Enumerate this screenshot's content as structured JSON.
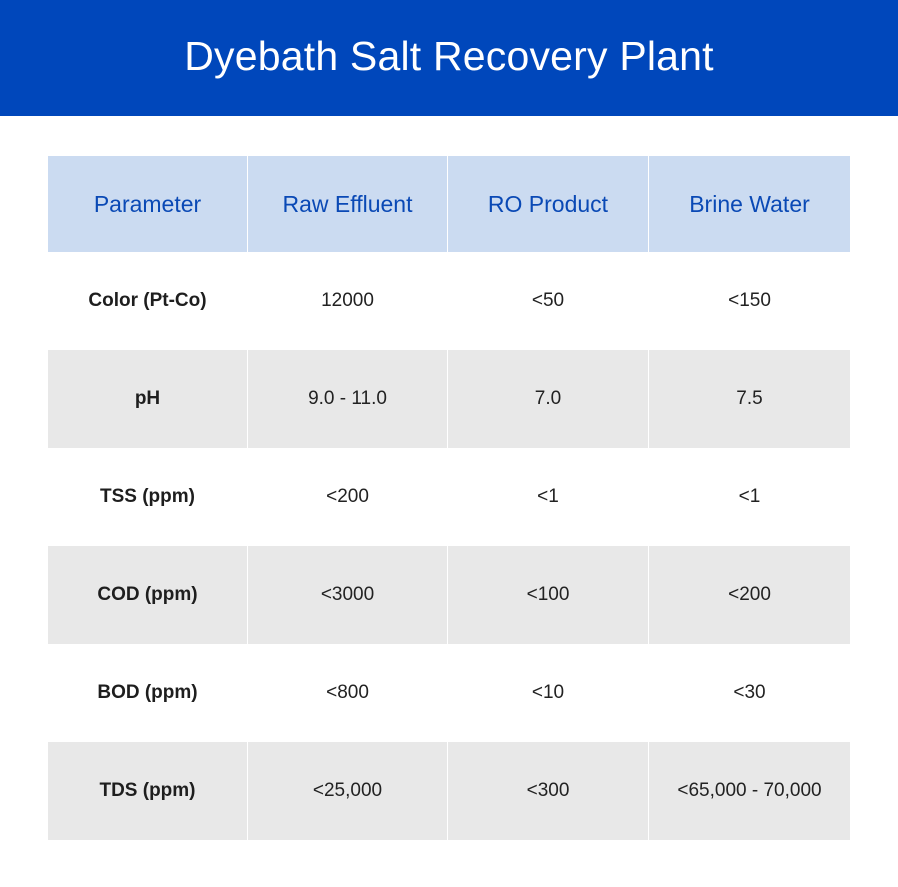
{
  "title": "Dyebath Salt Recovery Plant",
  "colors": {
    "banner": "#0047bb",
    "header_bg": "#cbdbf1",
    "header_text": "#0a49b5",
    "row_shade": "#e8e8e8"
  },
  "table": {
    "headers": [
      "Parameter",
      "Raw Effluent",
      "RO Product",
      "Brine Water"
    ],
    "rows": [
      {
        "parameter": "Color (Pt-Co)",
        "raw": "12000",
        "ro": "<50",
        "brine": "<150"
      },
      {
        "parameter": "pH",
        "raw": "9.0 - 11.0",
        "ro": "7.0",
        "brine": "7.5"
      },
      {
        "parameter": "TSS (ppm)",
        "raw": "<200",
        "ro": "<1",
        "brine": "<1"
      },
      {
        "parameter": "COD (ppm)",
        "raw": "<3000",
        "ro": "<100",
        "brine": "<200"
      },
      {
        "parameter": "BOD (ppm)",
        "raw": "<800",
        "ro": "<10",
        "brine": "<30"
      },
      {
        "parameter": "TDS (ppm)",
        "raw": "<25,000",
        "ro": "<300",
        "brine": "<65,000 - 70,000"
      }
    ]
  }
}
